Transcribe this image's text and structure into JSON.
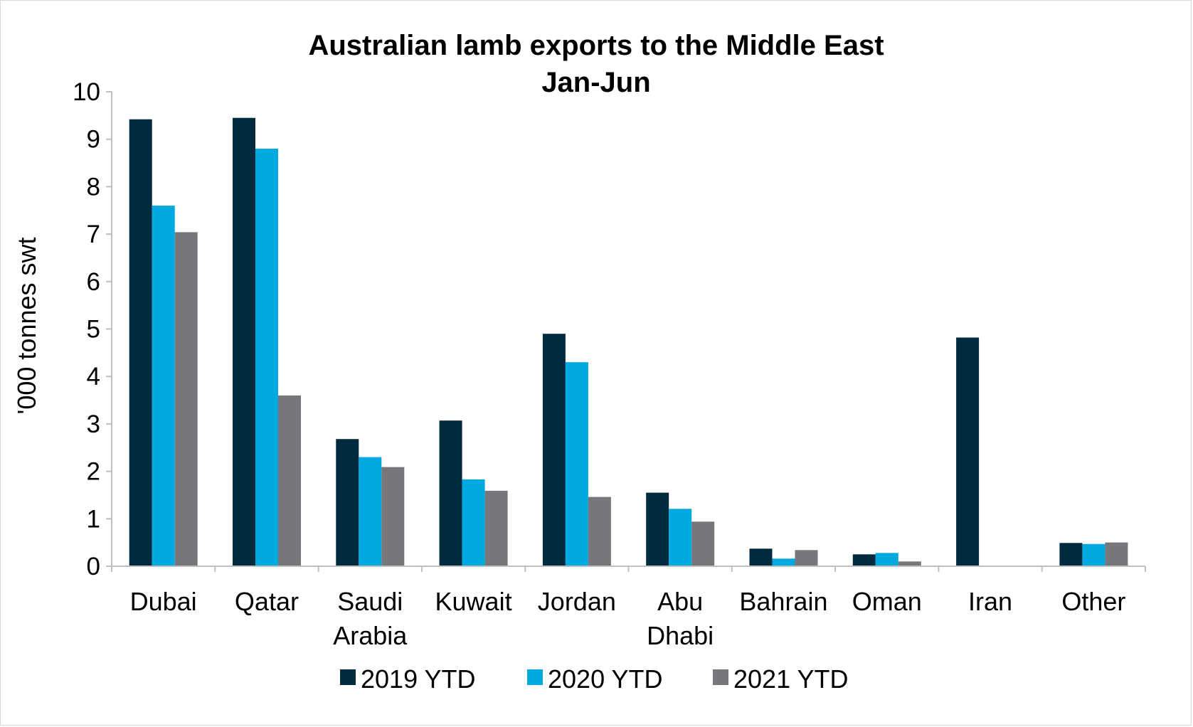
{
  "chart_data": {
    "type": "bar",
    "title": "Australian lamb exports to the Middle East",
    "subtitle": "Jan-Jun",
    "ylabel": "'000 tonnes swt",
    "xlabel": "",
    "ylim": [
      0,
      10
    ],
    "yticks": [
      0,
      1,
      2,
      3,
      4,
      5,
      6,
      7,
      8,
      9,
      10
    ],
    "grid": false,
    "legend_position": "bottom",
    "categories": [
      [
        "Dubai"
      ],
      [
        "Qatar"
      ],
      [
        "Saudi",
        "Arabia"
      ],
      [
        "Kuwait"
      ],
      [
        "Jordan"
      ],
      [
        "Abu",
        "Dhabi"
      ],
      [
        "Bahrain"
      ],
      [
        "Oman"
      ],
      [
        "Iran"
      ],
      [
        "Other"
      ]
    ],
    "series": [
      {
        "name": "2019 YTD",
        "color": "#002b3f",
        "values": [
          9.42,
          9.45,
          2.68,
          3.07,
          4.9,
          1.55,
          0.37,
          0.25,
          4.82,
          0.49
        ]
      },
      {
        "name": "2020 YTD",
        "color": "#00a9e0",
        "values": [
          7.6,
          8.8,
          2.3,
          1.83,
          4.3,
          1.21,
          0.16,
          0.28,
          0,
          0.47
        ]
      },
      {
        "name": "2021 YTD",
        "color": "#76777a",
        "values": [
          7.04,
          3.6,
          2.09,
          1.59,
          1.46,
          0.94,
          0.34,
          0.1,
          0,
          0.5
        ]
      }
    ]
  }
}
